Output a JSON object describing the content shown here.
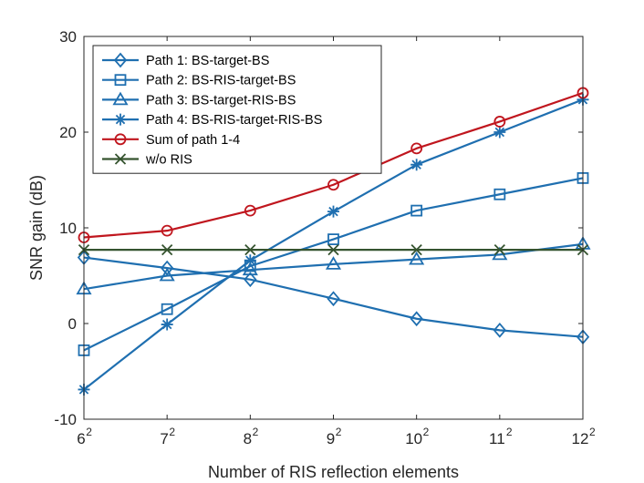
{
  "chart_data": {
    "type": "line",
    "title": "",
    "xlabel": "Number of RIS reflection elements",
    "ylabel": "SNR gain (dB)",
    "x_index": [
      0,
      1,
      2,
      3,
      4,
      5,
      6
    ],
    "x_tick_base": [
      "6",
      "7",
      "8",
      "9",
      "10",
      "11",
      "12"
    ],
    "x_tick_exp": [
      "2",
      "2",
      "2",
      "2",
      "2",
      "2",
      "2"
    ],
    "ylim": [
      -10,
      30
    ],
    "yticks": [
      -10,
      0,
      10,
      20,
      30
    ],
    "ytick_labels": [
      "-10",
      "0",
      "10",
      "20",
      "30"
    ],
    "grid": false,
    "legend_location": "top-left",
    "series": [
      {
        "name": "Path 1: BS-target-BS",
        "marker": "diamond",
        "color": "#1f6fb0",
        "values": [
          6.9,
          5.8,
          4.6,
          2.6,
          0.5,
          -0.7,
          -1.4
        ]
      },
      {
        "name": "Path 2: BS-RIS-target-BS",
        "marker": "square",
        "color": "#1f6fb0",
        "values": [
          -2.8,
          1.5,
          6.0,
          8.8,
          11.8,
          13.5,
          15.2
        ]
      },
      {
        "name": "Path 3: BS-target-RIS-BS",
        "marker": "triangle",
        "color": "#1f6fb0",
        "values": [
          3.6,
          5.0,
          5.6,
          6.2,
          6.7,
          7.2,
          8.3
        ]
      },
      {
        "name": "Path 4: BS-RIS-target-RIS-BS",
        "marker": "asterisk",
        "color": "#1f6fb0",
        "values": [
          -6.9,
          -0.1,
          6.6,
          11.7,
          16.6,
          20.0,
          23.4
        ]
      },
      {
        "name": "Sum of path 1-4",
        "marker": "circle",
        "color": "#c0161e",
        "values": [
          9.0,
          9.7,
          11.8,
          14.5,
          18.3,
          21.1,
          24.1
        ]
      },
      {
        "name": "w/o RIS",
        "marker": "x",
        "color": "#35532f",
        "values": [
          7.7,
          7.7,
          7.7,
          7.7,
          7.7,
          7.7,
          7.7
        ]
      }
    ]
  }
}
